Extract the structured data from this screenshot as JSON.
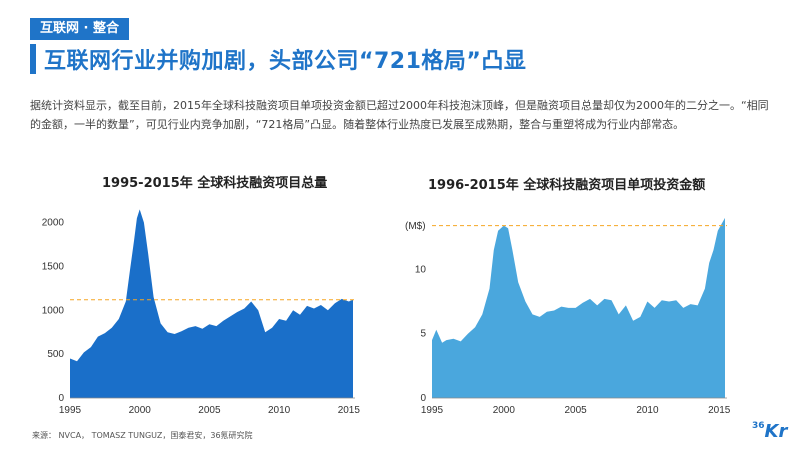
{
  "header": {
    "section_tag": "互联网 · 整合",
    "title": "互联网行业并购加剧，头部公司“721格局”凸显"
  },
  "description": "据统计资料显示，截至目前，2015年全球科技融资项目单项投资金额已超过2000年科技泡沫顶峰，但是融资项目总量却仅为2000年的二分之一。“相同的金额，一半的数量”，可见行业内竞争加剧，“721格局”凸显。随着整体行业热度已发展至成熟期，整合与重塑将成为行业内部常态。",
  "source": "来源： NVCA， TOMASZ TUNGUZ，国泰君安，36氪研究院",
  "logo": {
    "sup": "36",
    "main": "Kr"
  },
  "colors": {
    "accent": "#1f74c8",
    "area1": "#1a6fc9",
    "area2": "#4aa7dd",
    "refline": "#f5a623"
  },
  "chart_data": [
    {
      "type": "area",
      "title": "1995-2015年 全球科技融资项目总量",
      "xlabel": "",
      "ylabel": "",
      "xlim": [
        1995,
        2015.3
      ],
      "ylim": [
        0,
        2200
      ],
      "x_ticks": [
        1995,
        2000,
        2005,
        2010,
        2015
      ],
      "y_ticks": [
        0,
        500,
        1000,
        1500,
        2000
      ],
      "reference_line": 1120,
      "x": [
        1995,
        1995.5,
        1996,
        1996.5,
        1997,
        1997.5,
        1998,
        1998.5,
        1999,
        1999.3,
        1999.6,
        1999.8,
        2000,
        2000.3,
        2000.6,
        2001,
        2001.5,
        2002,
        2002.5,
        2003,
        2003.5,
        2004,
        2004.5,
        2005,
        2005.5,
        2006,
        2006.5,
        2007,
        2007.5,
        2008,
        2008.5,
        2009,
        2009.5,
        2010,
        2010.5,
        2011,
        2011.5,
        2012,
        2012.5,
        2013,
        2013.5,
        2014,
        2014.5,
        2015,
        2015.3
      ],
      "values": [
        450,
        420,
        520,
        580,
        700,
        740,
        800,
        900,
        1100,
        1450,
        1800,
        2050,
        2150,
        2000,
        1650,
        1150,
        850,
        750,
        730,
        760,
        800,
        820,
        790,
        840,
        820,
        880,
        930,
        980,
        1020,
        1100,
        1000,
        750,
        800,
        900,
        880,
        1000,
        950,
        1050,
        1020,
        1060,
        1000,
        1080,
        1130,
        1100,
        1120
      ]
    },
    {
      "type": "area",
      "title": "1996-2015年 全球科技融资项目单项投资金额",
      "ylabel": "(M$)",
      "xlabel": "",
      "xlim": [
        1995,
        2015.4
      ],
      "ylim": [
        0,
        15
      ],
      "x_ticks": [
        1995,
        2000,
        2005,
        2010,
        2015
      ],
      "y_ticks": [
        0,
        5,
        10
      ],
      "reference_line": 13.4,
      "x": [
        1995,
        1995.3,
        1995.7,
        1996,
        1996.5,
        1997,
        1997.5,
        1998,
        1998.5,
        1999,
        1999.3,
        1999.6,
        2000,
        2000.3,
        2000.6,
        2001,
        2001.5,
        2002,
        2002.5,
        2003,
        2003.5,
        2004,
        2004.5,
        2005,
        2005.5,
        2006,
        2006.5,
        2007,
        2007.5,
        2008,
        2008.5,
        2009,
        2009.5,
        2010,
        2010.5,
        2011,
        2011.5,
        2012,
        2012.5,
        2013,
        2013.5,
        2014,
        2014.3,
        2014.6,
        2014.9,
        2015.2,
        2015.4
      ],
      "values": [
        4.5,
        5.3,
        4.3,
        4.5,
        4.6,
        4.4,
        5.0,
        5.5,
        6.5,
        8.5,
        11.5,
        13.0,
        13.4,
        13.2,
        11.5,
        9.0,
        7.5,
        6.5,
        6.3,
        6.7,
        6.8,
        7.1,
        7.0,
        7.0,
        7.4,
        7.7,
        7.2,
        7.7,
        7.6,
        6.5,
        7.2,
        6.0,
        6.3,
        7.5,
        7.0,
        7.6,
        7.5,
        7.6,
        7.0,
        7.3,
        7.2,
        8.5,
        10.5,
        11.5,
        13.0,
        13.6,
        14.0
      ]
    }
  ]
}
